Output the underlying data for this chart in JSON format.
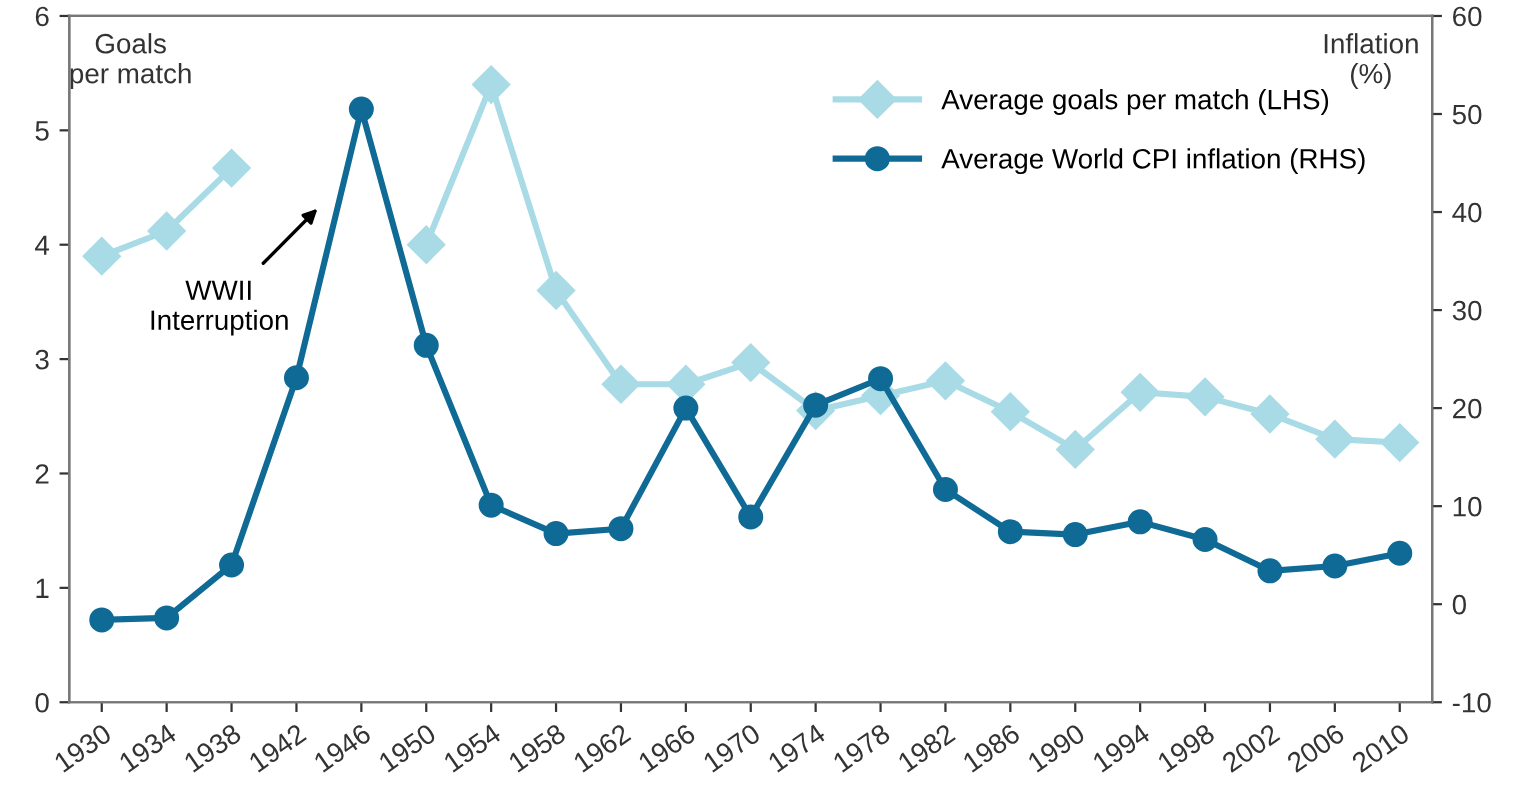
{
  "chart_data": {
    "type": "line",
    "ylabel": "Goals\nper match",
    "y2label": "Inflation\n(%)",
    "categories": [
      "1930",
      "1934",
      "1938",
      "1942",
      "1946",
      "1950",
      "1954",
      "1958",
      "1962",
      "1966",
      "1970",
      "1974",
      "1978",
      "1982",
      "1986",
      "1990",
      "1994",
      "1998",
      "2002",
      "2006",
      "2010"
    ],
    "series": [
      {
        "name": "Average goals per match (LHS)",
        "color": "#a8dbe6",
        "marker": "diamond",
        "values": [
          3.9,
          4.12,
          4.67,
          null,
          null,
          4.0,
          5.4,
          3.6,
          2.78,
          2.78,
          2.97,
          2.55,
          2.68,
          2.81,
          2.54,
          2.21,
          2.71,
          2.67,
          2.52,
          2.3,
          2.27
        ]
      },
      {
        "name": "Average World CPI inflation (RHS)",
        "color": "#0f6a96",
        "marker": "circle",
        "axis": "y2",
        "values": [
          -1.6,
          -1.4,
          4.0,
          23.1,
          50.5,
          26.4,
          10.1,
          7.2,
          7.7,
          20.0,
          8.9,
          20.3,
          23.0,
          11.7,
          7.4,
          7.1,
          8.4,
          6.6,
          3.4,
          3.9,
          5.2
        ]
      }
    ],
    "ylim": [
      0,
      6
    ],
    "yticks": [
      0,
      1,
      2,
      3,
      4,
      5,
      6
    ],
    "y2lim": [
      -10,
      60
    ],
    "y2ticks": [
      -10,
      0,
      10,
      20,
      30,
      40,
      50,
      60
    ],
    "annotations": [
      "WWII\nInterruption"
    ],
    "legend": "top right",
    "grid": false,
    "line_style": "solid"
  }
}
